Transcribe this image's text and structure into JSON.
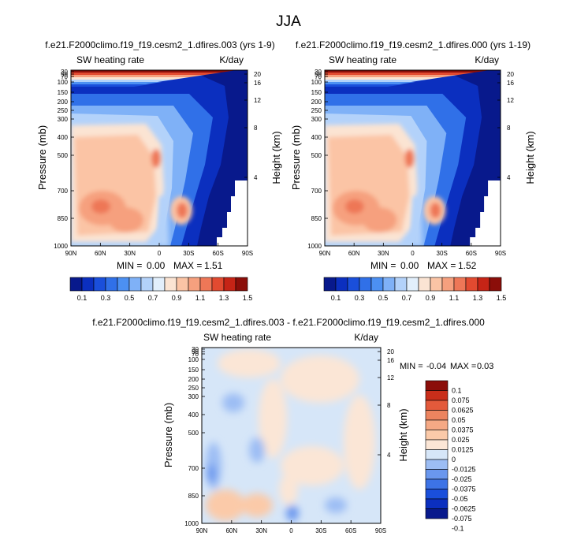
{
  "figure_title": "JJA",
  "colors": {
    "main_scale": [
      "#08198c",
      "#0b2fbf",
      "#1a4fdb",
      "#3070e8",
      "#4c90f2",
      "#7fb1f7",
      "#b3d2fa",
      "#e2effc",
      "#fbe4d3",
      "#fbc4a5",
      "#f6a07e",
      "#ee7757",
      "#e24a30",
      "#c62416",
      "#8b0e09"
    ],
    "diff_scale": [
      "#08198c",
      "#0b2fbf",
      "#1a4fdb",
      "#3d73e6",
      "#6a97ee",
      "#9cbdf4",
      "#d6e6f8",
      "#fbe6d6",
      "#fbcaa9",
      "#f5a985",
      "#ec845f",
      "#e35a3b",
      "#c92e1a",
      "#8b0e09"
    ]
  },
  "chart_data": [
    {
      "type": "heatmap",
      "title": "f.e21.F2000climo.f19_f19.cesm2_1.dfires.003 (yrs 1-9)",
      "left_label": "SW heating rate",
      "right_label": "K/day",
      "ylabel": "Pressure (mb)",
      "ylabel2": "Height (km)",
      "x_ticks": [
        "90N",
        "60N",
        "30N",
        "0",
        "30S",
        "60S",
        "90S"
      ],
      "y_ticks": [
        "30",
        "50",
        "70",
        "100",
        "150",
        "200",
        "250",
        "300",
        "400",
        "500",
        "700",
        "850",
        "1000"
      ],
      "y2_ticks": [
        "20",
        "16",
        "12",
        "8",
        "4"
      ],
      "stats": {
        "min_label": "MIN =",
        "min": "0.00",
        "max_label": "MAX =",
        "max": "1.51"
      },
      "colorbar_labels": [
        "0.1",
        "0.3",
        "0.5",
        "0.7",
        "0.9",
        "1.1",
        "1.3",
        "1.5"
      ]
    },
    {
      "type": "heatmap",
      "title": "f.e21.F2000climo.f19_f19.cesm2_1.dfires.000 (yrs 1-19)",
      "left_label": "SW heating rate",
      "right_label": "K/day",
      "ylabel": "Pressure (mb)",
      "ylabel2": "Height (km)",
      "x_ticks": [
        "90N",
        "60N",
        "30N",
        "0",
        "30S",
        "60S",
        "90S"
      ],
      "y_ticks": [
        "30",
        "50",
        "70",
        "100",
        "150",
        "200",
        "250",
        "300",
        "400",
        "500",
        "700",
        "850",
        "1000"
      ],
      "y2_ticks": [
        "20",
        "16",
        "12",
        "8",
        "4"
      ],
      "stats": {
        "min_label": "MIN =",
        "min": "0.00",
        "max_label": "MAX =",
        "max": "1.52"
      },
      "colorbar_labels": [
        "0.1",
        "0.3",
        "0.5",
        "0.7",
        "0.9",
        "1.1",
        "1.3",
        "1.5"
      ]
    },
    {
      "type": "heatmap",
      "title": "f.e21.F2000climo.f19_f19.cesm2_1.dfires.003 - f.e21.F2000climo.f19_f19.cesm2_1.dfires.000",
      "left_label": "SW heating rate",
      "right_label": "K/day",
      "ylabel": "Pressure (mb)",
      "ylabel2": "Height (km)",
      "x_ticks": [
        "90N",
        "60N",
        "30N",
        "0",
        "30S",
        "60S",
        "90S"
      ],
      "y_ticks": [
        "30",
        "50",
        "70",
        "100",
        "150",
        "200",
        "250",
        "300",
        "400",
        "500",
        "700",
        "850",
        "1000"
      ],
      "y2_ticks": [
        "20",
        "16",
        "12",
        "8",
        "4"
      ],
      "stats": {
        "min_label": "MIN =",
        "min": "-0.04",
        "max_label": "MAX =",
        "max": "0.03"
      },
      "colorbar_labels": [
        "0.1",
        "0.075",
        "0.0625",
        "0.05",
        "0.0375",
        "0.025",
        "0.0125",
        "0",
        "-0.0125",
        "-0.025",
        "-0.0375",
        "-0.05",
        "-0.0625",
        "-0.075",
        "-0.1"
      ]
    }
  ]
}
